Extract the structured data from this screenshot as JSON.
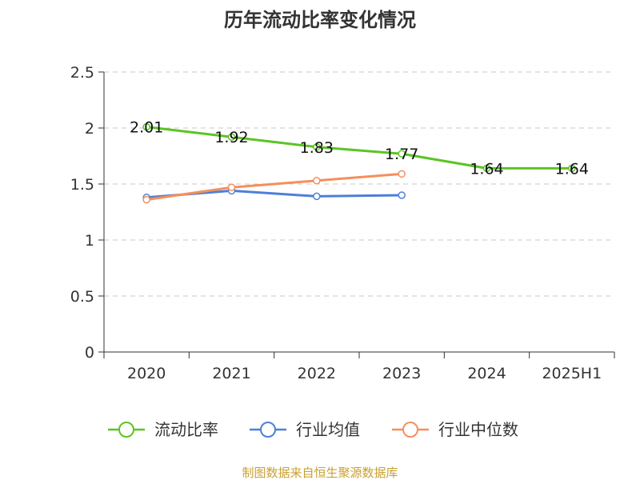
{
  "chart_data": {
    "type": "line",
    "title": "历年流动比率变化情况",
    "categories": [
      "2020",
      "2021",
      "2022",
      "2023",
      "2024",
      "2025H1"
    ],
    "ylim": [
      0,
      2.5
    ],
    "yticks": [
      "0",
      "0.5",
      "1",
      "1.5",
      "2",
      "2.5"
    ],
    "grid": true,
    "legend_position": "bottom",
    "series": [
      {
        "name": "流动比率",
        "color": "#5bc424",
        "values": [
          2.01,
          1.92,
          1.83,
          1.77,
          1.64,
          1.64
        ],
        "labels": [
          "2.01",
          "1.92",
          "1.83",
          "1.77",
          "1.64",
          "1.64"
        ]
      },
      {
        "name": "行业均值",
        "color": "#4e7fd8",
        "values": [
          1.38,
          1.44,
          1.39,
          1.4,
          null,
          null
        ]
      },
      {
        "name": "行业中位数",
        "color": "#f58f5b",
        "values": [
          1.36,
          1.47,
          1.53,
          1.59,
          null,
          null
        ]
      }
    ]
  },
  "source_text": "制图数据来自恒生聚源数据库"
}
